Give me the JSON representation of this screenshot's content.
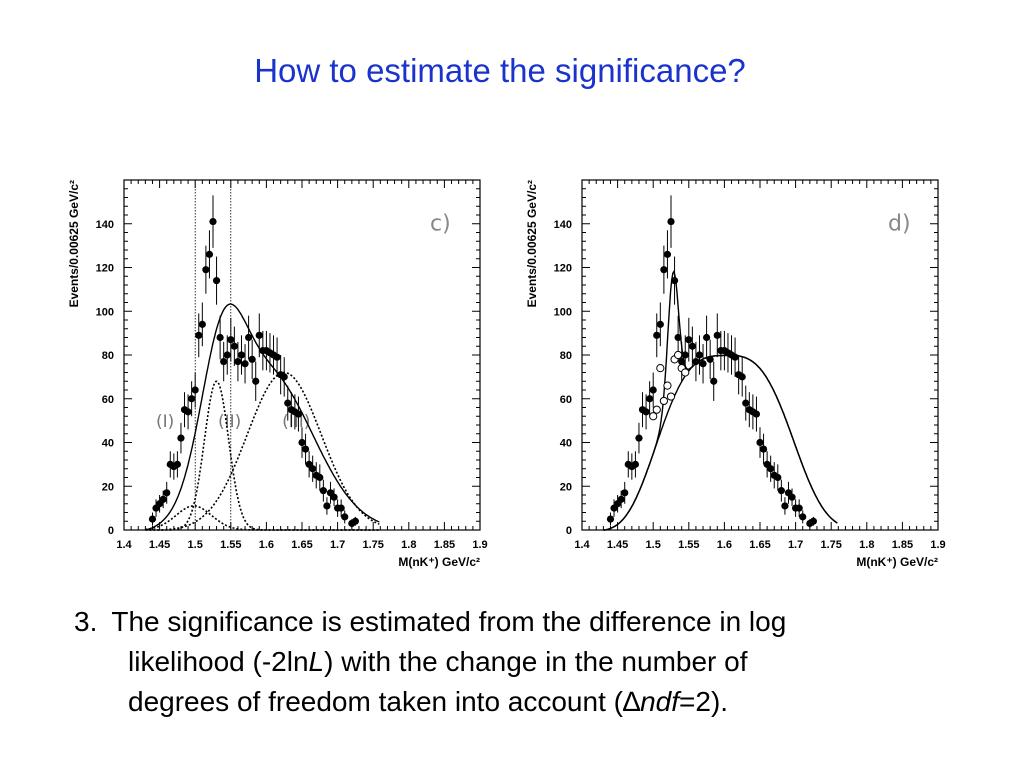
{
  "title": "How to estimate the significance?",
  "chart_data": [
    {
      "type": "scatter",
      "panel_label": "c)",
      "xlabel": "M(nK⁺) GeV/c²",
      "ylabel": "Events/0.00625 GeV/c²",
      "xlim": [
        1.4,
        1.9
      ],
      "ylim": [
        0,
        160
      ],
      "xticks": [
        "1.4",
        "1.45",
        "1.5",
        "1.55",
        "1.6",
        "1.65",
        "1.7",
        "1.75",
        "1.8",
        "1.85",
        "1.9"
      ],
      "yticks": [
        "0",
        "20",
        "40",
        "60",
        "80",
        "100",
        "120",
        "140"
      ],
      "region_labels": [
        {
          "text": "(I)",
          "x": 1.445,
          "y": 47
        },
        {
          "text": "(II)",
          "x": 1.532,
          "y": 47
        },
        {
          "text": "(III)",
          "x": 1.622,
          "y": 47
        }
      ],
      "vlines": [
        1.5,
        1.55
      ],
      "points": [
        [
          1.44,
          5,
          3
        ],
        [
          1.445,
          10,
          4
        ],
        [
          1.45,
          12,
          4
        ],
        [
          1.455,
          14,
          4
        ],
        [
          1.46,
          17,
          5
        ],
        [
          1.465,
          30,
          6
        ],
        [
          1.47,
          29,
          6
        ],
        [
          1.475,
          30,
          6
        ],
        [
          1.48,
          42,
          7
        ],
        [
          1.485,
          55,
          8
        ],
        [
          1.49,
          54,
          8
        ],
        [
          1.495,
          60,
          8
        ],
        [
          1.5,
          64,
          8
        ],
        [
          1.505,
          89,
          10
        ],
        [
          1.51,
          94,
          10
        ],
        [
          1.515,
          119,
          11
        ],
        [
          1.52,
          126,
          11
        ],
        [
          1.525,
          141,
          12
        ],
        [
          1.53,
          114,
          11
        ],
        [
          1.535,
          88,
          10
        ],
        [
          1.54,
          77,
          9
        ],
        [
          1.545,
          80,
          9
        ],
        [
          1.55,
          87,
          10
        ],
        [
          1.555,
          84,
          9
        ],
        [
          1.56,
          77,
          9
        ],
        [
          1.565,
          80,
          9
        ],
        [
          1.57,
          76,
          9
        ],
        [
          1.575,
          88,
          10
        ],
        [
          1.58,
          78,
          9
        ],
        [
          1.585,
          68,
          9
        ],
        [
          1.59,
          89,
          10
        ],
        [
          1.595,
          82,
          9
        ],
        [
          1.6,
          82,
          9
        ],
        [
          1.605,
          81,
          9
        ],
        [
          1.61,
          80,
          9
        ],
        [
          1.615,
          79,
          9
        ],
        [
          1.62,
          71,
          9
        ],
        [
          1.625,
          70,
          9
        ],
        [
          1.63,
          58,
          8
        ],
        [
          1.635,
          55,
          8
        ],
        [
          1.64,
          54,
          8
        ],
        [
          1.645,
          53,
          8
        ],
        [
          1.65,
          40,
          7
        ],
        [
          1.655,
          37,
          7
        ],
        [
          1.66,
          30,
          6
        ],
        [
          1.665,
          28,
          6
        ],
        [
          1.67,
          25,
          6
        ],
        [
          1.675,
          24,
          6
        ],
        [
          1.68,
          18,
          5
        ],
        [
          1.685,
          11,
          4
        ],
        [
          1.69,
          17,
          5
        ],
        [
          1.695,
          15,
          4
        ],
        [
          1.7,
          10,
          4
        ],
        [
          1.705,
          10,
          4
        ],
        [
          1.71,
          6,
          3
        ],
        [
          1.72,
          3,
          2
        ],
        [
          1.725,
          4,
          2
        ]
      ],
      "curves": [
        {
          "name": "fit",
          "style": "solid",
          "kind": "c_fit"
        },
        {
          "name": "(I)",
          "style": "dotted",
          "center": 1.498,
          "sigma": 0.025,
          "amp": 11
        },
        {
          "name": "(II)",
          "style": "dotted",
          "center": 1.53,
          "sigma": 0.017,
          "amp": 68
        },
        {
          "name": "(III)",
          "style": "dotted",
          "center": 1.625,
          "sigma": 0.052,
          "amp": 72
        }
      ]
    },
    {
      "type": "scatter",
      "panel_label": "d)",
      "xlabel": "M(nK⁺) GeV/c²",
      "ylabel": "Events/0.00625 GeV/c²",
      "xlim": [
        1.4,
        1.9
      ],
      "ylim": [
        0,
        160
      ],
      "xticks": [
        "1.4",
        "1.45",
        "1.5",
        "1.55",
        "1.6",
        "1.65",
        "1.7",
        "1.75",
        "1.8",
        "1.85",
        "1.9"
      ],
      "yticks": [
        "0",
        "20",
        "40",
        "60",
        "80",
        "100",
        "120",
        "140"
      ],
      "points": [
        [
          1.44,
          5,
          3
        ],
        [
          1.445,
          10,
          4
        ],
        [
          1.45,
          12,
          4
        ],
        [
          1.455,
          14,
          4
        ],
        [
          1.46,
          17,
          5
        ],
        [
          1.465,
          30,
          6
        ],
        [
          1.47,
          29,
          6
        ],
        [
          1.475,
          30,
          6
        ],
        [
          1.48,
          42,
          7
        ],
        [
          1.485,
          55,
          8
        ],
        [
          1.49,
          54,
          8
        ],
        [
          1.495,
          60,
          8
        ],
        [
          1.5,
          64,
          8
        ],
        [
          1.505,
          89,
          10
        ],
        [
          1.51,
          94,
          10
        ],
        [
          1.515,
          119,
          11
        ],
        [
          1.52,
          126,
          11
        ],
        [
          1.525,
          141,
          12
        ],
        [
          1.53,
          114,
          11
        ],
        [
          1.535,
          88,
          10
        ],
        [
          1.54,
          77,
          9
        ],
        [
          1.545,
          80,
          9
        ],
        [
          1.55,
          87,
          10
        ],
        [
          1.555,
          84,
          9
        ],
        [
          1.56,
          77,
          9
        ],
        [
          1.565,
          80,
          9
        ],
        [
          1.57,
          76,
          9
        ],
        [
          1.575,
          88,
          10
        ],
        [
          1.58,
          78,
          9
        ],
        [
          1.585,
          68,
          9
        ],
        [
          1.59,
          89,
          10
        ],
        [
          1.595,
          82,
          9
        ],
        [
          1.6,
          82,
          9
        ],
        [
          1.605,
          81,
          9
        ],
        [
          1.61,
          80,
          9
        ],
        [
          1.615,
          79,
          9
        ],
        [
          1.62,
          71,
          9
        ],
        [
          1.625,
          70,
          9
        ],
        [
          1.63,
          58,
          8
        ],
        [
          1.635,
          55,
          8
        ],
        [
          1.64,
          54,
          8
        ],
        [
          1.645,
          53,
          8
        ],
        [
          1.65,
          40,
          7
        ],
        [
          1.655,
          37,
          7
        ],
        [
          1.66,
          30,
          6
        ],
        [
          1.665,
          28,
          6
        ],
        [
          1.67,
          25,
          6
        ],
        [
          1.675,
          24,
          6
        ],
        [
          1.68,
          18,
          5
        ],
        [
          1.685,
          11,
          4
        ],
        [
          1.69,
          17,
          5
        ],
        [
          1.695,
          15,
          4
        ],
        [
          1.7,
          10,
          4
        ],
        [
          1.705,
          10,
          4
        ],
        [
          1.71,
          6,
          3
        ],
        [
          1.72,
          3,
          2
        ],
        [
          1.725,
          4,
          2
        ]
      ],
      "open_points": [
        [
          1.5,
          52
        ],
        [
          1.505,
          55
        ],
        [
          1.51,
          74
        ],
        [
          1.515,
          59
        ],
        [
          1.52,
          66
        ],
        [
          1.525,
          61
        ],
        [
          1.53,
          78
        ],
        [
          1.535,
          80
        ],
        [
          1.54,
          74
        ],
        [
          1.545,
          72
        ]
      ],
      "curves": [
        {
          "name": "fit",
          "style": "solid",
          "kind": "d_fit"
        },
        {
          "name": "background",
          "style": "solid",
          "kind": "d_bg"
        }
      ]
    }
  ],
  "body": {
    "number": "3.",
    "line1": "The significance is estimated from the difference in log",
    "line2_a": "likelihood (-2ln",
    "line2_b": "L",
    "line2_c": ") with the change in the number of",
    "line3_a": "degrees of freedom taken into account (",
    "line3_b": "∆",
    "line3_c": "ndf",
    "line3_d": "=2)."
  }
}
